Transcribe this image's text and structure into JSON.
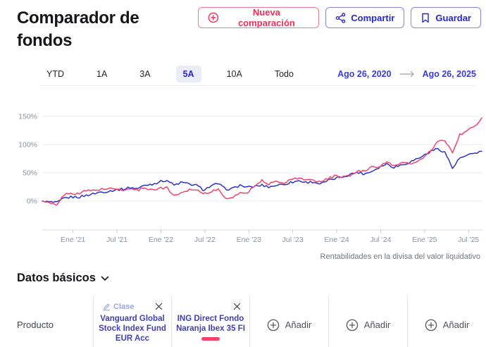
{
  "header": {
    "title": "Comparador de fondos",
    "new_comparison_label": "Nueva comparación",
    "share_label": "Compartir",
    "save_label": "Guardar"
  },
  "toolbar": {
    "ranges": [
      "YTD",
      "1A",
      "3A",
      "5A",
      "10A",
      "Todo"
    ],
    "selected_range": "5A",
    "date_from": "Ago 26, 2020",
    "date_to": "Ago 26, 2025"
  },
  "colors": {
    "accent_pink": "#ee2e57",
    "accent_blue": "#2525d2",
    "tab_active_bg": "#eaedf6",
    "grid": "#ebebf1",
    "axis_text": "#8b93a2"
  },
  "chart_data": {
    "type": "line",
    "title": "",
    "xlabel": "",
    "ylabel": "",
    "value_unit": "cumulative return %, monthly points from Ago 26 2020 to Ago 26 2025",
    "ylim": [
      -20,
      162
    ],
    "grid": true,
    "legend_position": "none",
    "y_ticks": [
      {
        "v": 0,
        "label": "0%"
      },
      {
        "v": 50,
        "label": "50%"
      },
      {
        "v": 100,
        "label": "100%"
      },
      {
        "v": 150,
        "label": "150%"
      }
    ],
    "x_ticks": [
      {
        "m": 4.2,
        "label": "Ene '21"
      },
      {
        "m": 10.2,
        "label": "Jul '21"
      },
      {
        "m": 16.2,
        "label": "Ene '22"
      },
      {
        "m": 22.2,
        "label": "Jul '22"
      },
      {
        "m": 28.2,
        "label": "Ene '23"
      },
      {
        "m": 34.2,
        "label": "Jul '23"
      },
      {
        "m": 40.2,
        "label": "Ene '24"
      },
      {
        "m": 46.2,
        "label": "Jul '24"
      },
      {
        "m": 52.2,
        "label": "Ene '25"
      },
      {
        "m": 58.2,
        "label": "Jul '25"
      }
    ],
    "series": [
      {
        "name": "Vanguard Global Stock Index Fund EUR Acc",
        "color": "#2b33c6",
        "values": [
          0,
          -2,
          -3,
          5,
          7,
          7,
          10,
          13,
          16,
          17,
          20,
          21,
          24,
          22,
          28,
          30,
          34,
          37,
          28,
          33,
          30,
          28,
          20,
          26,
          31,
          21,
          22,
          28,
          24,
          26,
          28,
          25,
          28,
          30,
          33,
          36,
          33,
          34,
          30,
          36,
          40,
          43,
          47,
          51,
          48,
          53,
          60,
          66,
          60,
          64,
          68,
          74,
          80,
          88,
          93,
          86,
          58,
          76,
          80,
          85,
          88
        ]
      },
      {
        "name": "ING Direct Fondo Naranja Ibex 35 FI",
        "color": "#f4426c",
        "values": [
          0,
          -4,
          -8,
          12,
          13,
          14,
          18,
          19,
          21,
          22,
          21,
          20,
          22,
          19,
          24,
          20,
          22,
          24,
          9,
          15,
          20,
          21,
          13,
          17,
          20,
          6,
          5,
          15,
          15,
          28,
          36,
          30,
          35,
          33,
          38,
          41,
          37,
          38,
          33,
          40,
          44,
          42,
          45,
          52,
          54,
          60,
          62,
          68,
          63,
          68,
          66,
          68,
          76,
          88,
          105,
          108,
          84,
          118,
          124,
          132,
          146
        ]
      }
    ]
  },
  "chart_footnote": "Rentabilidades en la divisa del valor liquidativo",
  "section": {
    "title": "Datos básicos"
  },
  "table": {
    "row_label": "Producto",
    "class_badge": "Clase",
    "add_label": "Añadir",
    "products": [
      {
        "name": "Vanguard Global Stock Index Fund EUR Acc",
        "color": "#2e34c2"
      },
      {
        "name": "ING Direct Fondo Naranja Ibex 35 FI",
        "color": "#f4426c"
      }
    ]
  }
}
